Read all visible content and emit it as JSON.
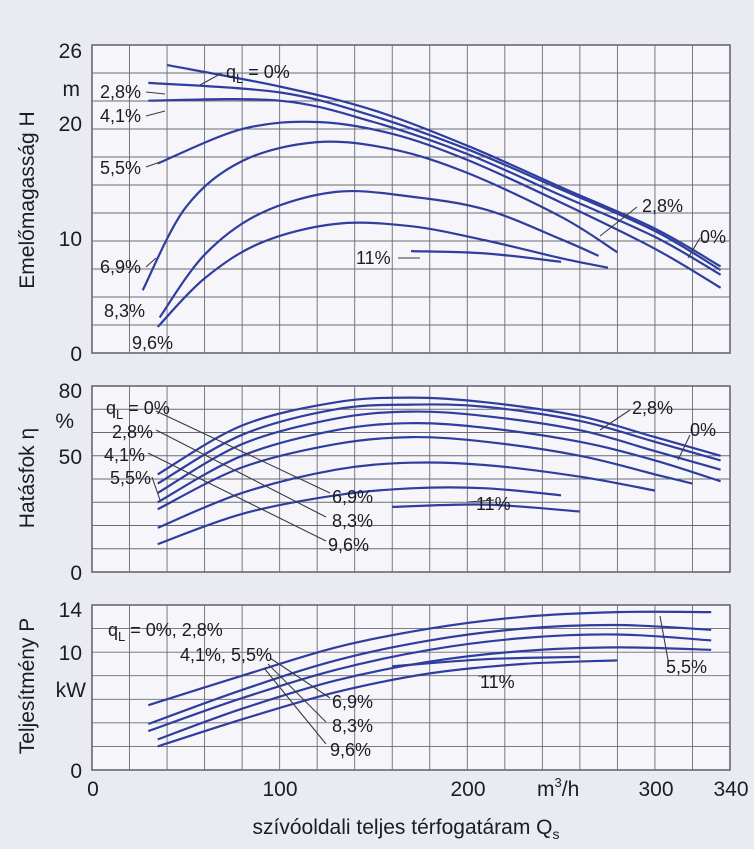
{
  "chart_data": [
    {
      "type": "line",
      "ylabel": "Emelőmagasság H",
      "yunit": "m",
      "ylim": [
        0,
        26
      ],
      "yticks": [
        0,
        10,
        20,
        26
      ],
      "xlim": [
        0,
        340
      ],
      "grid": true,
      "series": [
        {
          "name": "0%",
          "x": [
            40,
            100,
            150,
            200,
            250,
            300,
            335
          ],
          "y": [
            24.3,
            22.5,
            20.5,
            17.5,
            14.0,
            10.5,
            7.3
          ]
        },
        {
          "name": "2.8%",
          "x": [
            30,
            100,
            150,
            200,
            250,
            300,
            335
          ],
          "y": [
            22.8,
            22.0,
            20.0,
            17.2,
            13.8,
            10.3,
            7.0
          ]
        },
        {
          "name": "4.1%",
          "x": [
            30,
            100,
            150,
            200,
            250,
            300,
            335
          ],
          "y": [
            21.3,
            21.3,
            19.5,
            16.8,
            13.3,
            9.8,
            6.6
          ]
        },
        {
          "name": "5.5%",
          "x": [
            35,
            80,
            120,
            160,
            200,
            250,
            300,
            335
          ],
          "y": [
            16.0,
            18.9,
            19.5,
            18.5,
            16.3,
            12.7,
            8.8,
            5.5
          ]
        },
        {
          "name": "6.9%",
          "x": [
            27,
            50,
            80,
            120,
            160,
            200,
            250,
            280
          ],
          "y": [
            5.3,
            12.3,
            16.2,
            17.8,
            17.2,
            15.2,
            11.5,
            8.5
          ]
        },
        {
          "name": "8.3%",
          "x": [
            36,
            60,
            90,
            130,
            170,
            210,
            250,
            270
          ],
          "y": [
            3.0,
            8.3,
            11.8,
            13.6,
            13.2,
            12.1,
            9.6,
            8.2
          ]
        },
        {
          "name": "9.6%",
          "x": [
            35,
            60,
            90,
            130,
            170,
            210,
            250,
            275
          ],
          "y": [
            2.2,
            6.3,
            9.3,
            10.9,
            10.7,
            9.5,
            8.0,
            7.2
          ]
        },
        {
          "name": "11%",
          "x": [
            170,
            210,
            250
          ],
          "y": [
            8.6,
            8.4,
            7.7
          ]
        }
      ],
      "labels": [
        "q_L = 0%",
        "2,8%",
        "4,1%",
        "5,5%",
        "6,9%",
        "8,3%",
        "9,6%",
        "11%",
        "2,8%",
        "0%"
      ]
    },
    {
      "type": "line",
      "ylabel": "Hatásfok η",
      "yunit": "%",
      "ylim": [
        0,
        80
      ],
      "yticks": [
        0,
        50,
        80
      ],
      "xlim": [
        0,
        340
      ],
      "grid": true,
      "series": [
        {
          "name": "0%",
          "x": [
            35,
            80,
            130,
            170,
            210,
            260,
            300,
            335
          ],
          "y": [
            42,
            63,
            73,
            75,
            73,
            67,
            58,
            50
          ]
        },
        {
          "name": "2.8%",
          "x": [
            35,
            80,
            130,
            170,
            210,
            260,
            300,
            335
          ],
          "y": [
            38,
            59,
            70,
            72,
            71,
            65,
            56,
            48
          ]
        },
        {
          "name": "4.1%",
          "x": [
            35,
            80,
            130,
            170,
            210,
            260,
            300,
            335
          ],
          "y": [
            34,
            55,
            66,
            69,
            67,
            61,
            52,
            44
          ]
        },
        {
          "name": "5.5%",
          "x": [
            35,
            80,
            130,
            170,
            210,
            260,
            300,
            335
          ],
          "y": [
            30,
            50,
            61,
            64,
            62,
            56,
            48,
            39
          ]
        },
        {
          "name": "6.9%",
          "x": [
            35,
            80,
            130,
            170,
            210,
            260,
            300,
            320
          ],
          "y": [
            27,
            45,
            55,
            58,
            56,
            50,
            42,
            38
          ]
        },
        {
          "name": "8.3%",
          "x": [
            35,
            80,
            130,
            170,
            210,
            260,
            300
          ],
          "y": [
            19,
            34,
            44,
            47,
            46,
            41,
            35
          ]
        },
        {
          "name": "9.6%",
          "x": [
            35,
            80,
            130,
            170,
            210,
            250
          ],
          "y": [
            12,
            25,
            33,
            36,
            36,
            33
          ]
        },
        {
          "name": "11%",
          "x": [
            160,
            210,
            260
          ],
          "y": [
            28,
            29,
            26
          ]
        }
      ],
      "labels": [
        "q_L = 0%",
        "2,8%",
        "4,1%",
        "5,5%",
        "6,9%",
        "8,3%",
        "9,6%",
        "11%",
        "2,8%",
        "0%"
      ]
    },
    {
      "type": "line",
      "ylabel": "Teljesítmény P",
      "yunit": "kW",
      "ylim": [
        0,
        14
      ],
      "yticks": [
        0,
        10,
        14
      ],
      "xlabel": "szívóoldali teljes térfogatáram Q_s",
      "xunit": "m³/h",
      "xlim": [
        0,
        340
      ],
      "xticks": [
        0,
        100,
        200,
        300,
        340
      ],
      "grid": true,
      "series": [
        {
          "name": "0%, 2.8%",
          "x": [
            30,
            80,
            130,
            180,
            230,
            280,
            330
          ],
          "y": [
            5.5,
            8.0,
            10.4,
            12.0,
            13.0,
            13.4,
            13.4
          ]
        },
        {
          "name": "4.1%, 5.5%",
          "x": [
            30,
            80,
            130,
            180,
            230,
            280,
            330
          ],
          "y": [
            3.9,
            6.8,
            9.3,
            11.0,
            12.0,
            12.3,
            11.9
          ]
        },
        {
          "name": "6.9%",
          "x": [
            30,
            80,
            130,
            180,
            230,
            280,
            330
          ],
          "y": [
            3.3,
            6.1,
            8.5,
            10.2,
            11.2,
            11.5,
            11.0
          ]
        },
        {
          "name": "8.3%",
          "x": [
            35,
            80,
            130,
            180,
            230,
            280,
            330
          ],
          "y": [
            2.6,
            5.2,
            7.6,
            9.2,
            10.1,
            10.4,
            10.2
          ]
        },
        {
          "name": "9.6%",
          "x": [
            35,
            80,
            130,
            180,
            230,
            280
          ],
          "y": [
            2.0,
            4.3,
            6.6,
            8.2,
            9.0,
            9.3
          ]
        },
        {
          "name": "11%",
          "x": [
            160,
            210,
            260
          ],
          "y": [
            8.8,
            9.4,
            9.6
          ]
        }
      ],
      "labels": [
        "q_L = 0%, 2,8%",
        "4,1%, 5,5%",
        "6,9%",
        "8,3%",
        "9,6%",
        "11%",
        "5,5%"
      ]
    }
  ],
  "texts": {
    "panel1": {
      "ylabel": "Emelőmagasság H",
      "unit": "m",
      "ticks": [
        "26",
        "20",
        "10",
        "0"
      ],
      "lbl_ql": "q",
      "lbl_ql_sub": "L",
      "lbl_ql_rest": " = 0%",
      "lbl_28": "2,8%",
      "lbl_41": "4,1%",
      "lbl_55": "5,5%",
      "lbl_69": "6,9%",
      "lbl_83": "8,3%",
      "lbl_96": "9,6%",
      "lbl_11": "11%",
      "lbl_r28": "2,8%",
      "lbl_r0": "0%"
    },
    "panel2": {
      "ylabel": "Hatásfok η",
      "unit": "%",
      "ticks": [
        "80",
        "50",
        "0"
      ],
      "lbl_ql": "q",
      "lbl_ql_sub": "L",
      "lbl_ql_rest": " = 0%",
      "lbl_28": "2,8%",
      "lbl_41": "4,1%",
      "lbl_55": "5,5%",
      "lbl_69": "6,9%",
      "lbl_83": "8,3%",
      "lbl_96": "9,6%",
      "lbl_11": "11%",
      "lbl_r28": "2,8%",
      "lbl_r0": "0%"
    },
    "panel3": {
      "ylabel": "Teljesítmény P",
      "unit": "kW",
      "ticks": [
        "14",
        "10",
        "0"
      ],
      "lbl_ql": "q",
      "lbl_ql_sub": "L",
      "lbl_ql_rest": " = 0%, 2,8%",
      "lbl_4155": "4,1%, 5,5%",
      "lbl_69": "6,9%",
      "lbl_83": "8,3%",
      "lbl_96": "9,6%",
      "lbl_11": "11%",
      "lbl_r55": "5,5%"
    },
    "xaxis": {
      "ticks": [
        "0",
        "100",
        "200",
        "300",
        "340"
      ],
      "unit_main": "m",
      "unit_sup": "3",
      "unit_rest": "/h",
      "label_main": "szívóoldali teljes térfogatáram Q",
      "label_sub": "s"
    }
  }
}
